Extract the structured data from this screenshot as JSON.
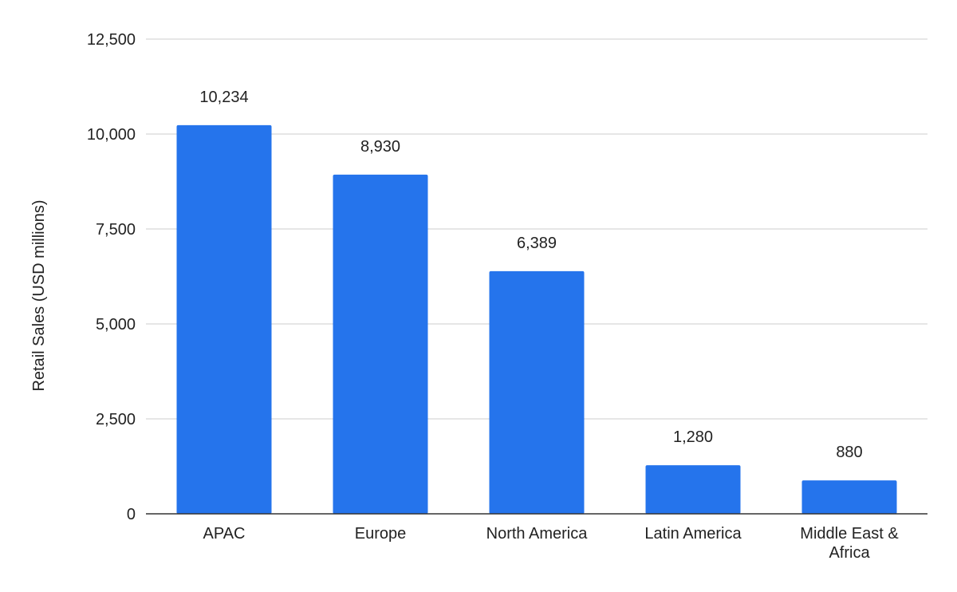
{
  "chart_data": {
    "type": "bar",
    "title": "",
    "xlabel": "",
    "ylabel": "Retail Sales (USD millions)",
    "categories": [
      "APAC",
      "Europe",
      "North America",
      "Latin America",
      "Middle East & Africa"
    ],
    "category_lines": [
      [
        "APAC"
      ],
      [
        "Europe"
      ],
      [
        "North America"
      ],
      [
        "Latin America"
      ],
      [
        "Middle East &",
        "Africa"
      ]
    ],
    "values": [
      10234,
      8930,
      6389,
      1280,
      880
    ],
    "data_labels": [
      "10,234",
      "8,930",
      "6,389",
      "1,280",
      "880"
    ],
    "ylim": [
      0,
      12500
    ],
    "yticks": [
      0,
      2500,
      5000,
      7500,
      10000,
      12500
    ],
    "ytick_labels": [
      "0",
      "2,500",
      "5,000",
      "7,500",
      "10,000",
      "12,500"
    ],
    "grid": true,
    "legend": "none",
    "bar_color": "#2574ec"
  }
}
